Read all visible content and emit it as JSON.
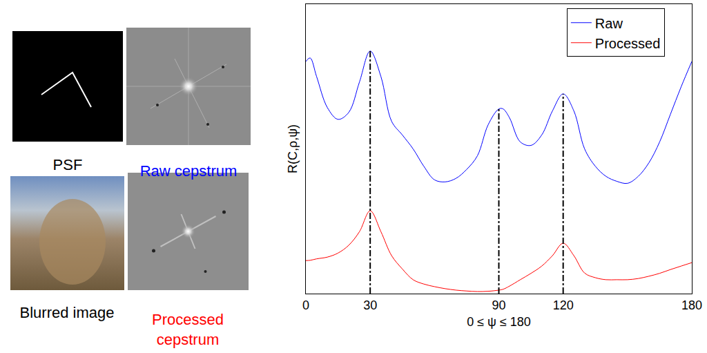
{
  "chart_data": {
    "type": "line",
    "x_label": "0 ≤ ψ ≤ 180",
    "y_label": "R(C,ρ,ψ)",
    "x": [
      0,
      2,
      5,
      10,
      15,
      20,
      25,
      30,
      35,
      40,
      45,
      50,
      55,
      60,
      65,
      70,
      75,
      80,
      85,
      90,
      92,
      95,
      100,
      105,
      110,
      115,
      120,
      125,
      130,
      135,
      140,
      145,
      150,
      155,
      160,
      165,
      170,
      175,
      180
    ],
    "series": [
      {
        "name": "Raw",
        "color": "#0000ff",
        "values": [
          8.02,
          8.14,
          7.5,
          6.43,
          6.02,
          6.26,
          7.31,
          8.38,
          7.5,
          5.95,
          5.48,
          5.0,
          4.4,
          3.93,
          3.86,
          3.98,
          4.29,
          4.76,
          5.83,
          6.38,
          6.38,
          6.07,
          5.24,
          5.12,
          5.48,
          6.31,
          6.9,
          6.31,
          5.0,
          4.4,
          4.05,
          3.88,
          3.81,
          4.05,
          4.52,
          5.24,
          6.19,
          7.14,
          8.02
        ]
      },
      {
        "name": "Processed",
        "color": "#ff0000",
        "values": [
          1.14,
          1.15,
          1.2,
          1.26,
          1.4,
          1.67,
          2.14,
          2.86,
          2.14,
          1.31,
          0.85,
          0.48,
          0.33,
          0.24,
          0.17,
          0.12,
          0.09,
          0.07,
          0.08,
          0.12,
          0.15,
          0.26,
          0.48,
          0.7,
          0.95,
          1.31,
          1.74,
          1.31,
          0.71,
          0.55,
          0.48,
          0.48,
          0.48,
          0.52,
          0.6,
          0.7,
          0.83,
          0.95,
          1.07
        ]
      }
    ],
    "xlim": [
      0,
      180
    ],
    "xticks": [
      0,
      30,
      90,
      120,
      180
    ],
    "ylim": [
      0,
      10
    ],
    "tick_labels": "x",
    "legend": "top right",
    "reference_lines": {
      "x": [
        30,
        90,
        120
      ],
      "color": "#000000",
      "line_style": "dashdot"
    }
  },
  "panels": [
    {
      "label": "PSF",
      "color": "#000000"
    },
    {
      "label": "Raw cepstrum",
      "color": "#0000ff"
    },
    {
      "label": "Blurred image",
      "color": "#000000"
    },
    {
      "label": "Processed cepstrum",
      "color": "#ff0000"
    }
  ]
}
